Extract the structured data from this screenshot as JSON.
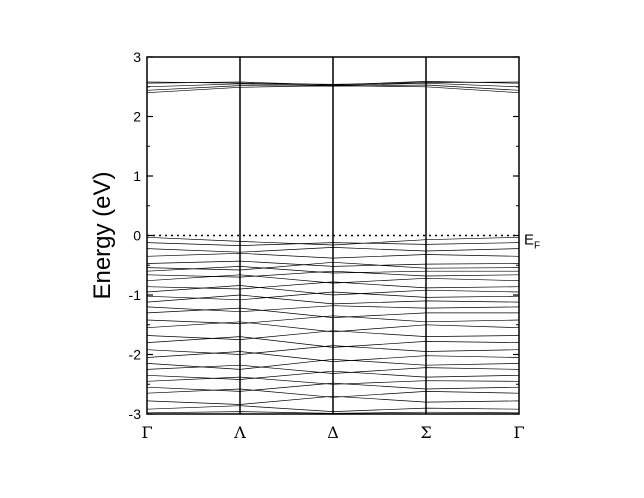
{
  "chart_data": {
    "type": "line",
    "title": "",
    "xlabel": "",
    "ylabel": "Energy (eV)",
    "ylim": [
      -3,
      3
    ],
    "yticks": [
      -3,
      -2,
      -1,
      0,
      1,
      2,
      3
    ],
    "kpoints": [
      {
        "label": "Γ",
        "x": 0
      },
      {
        "label": "Λ",
        "x": 1
      },
      {
        "label": "Δ",
        "x": 2
      },
      {
        "label": "Σ",
        "x": 3
      },
      {
        "label": "Γ",
        "x": 4
      }
    ],
    "fermi_level": {
      "energy": 0,
      "label": "E",
      "subscript": "F"
    },
    "band_color": "#000000",
    "bands": [
      {
        "values": [
          2.58,
          2.56,
          2.54,
          2.57,
          2.58
        ]
      },
      {
        "values": [
          2.56,
          2.58,
          2.53,
          2.59,
          2.56
        ]
      },
      {
        "values": [
          2.5,
          2.55,
          2.52,
          2.56,
          2.5
        ]
      },
      {
        "values": [
          2.44,
          2.52,
          2.51,
          2.53,
          2.44
        ]
      },
      {
        "values": [
          2.4,
          2.49,
          2.52,
          2.5,
          2.4
        ]
      },
      {
        "values": [
          -0.03,
          -0.1,
          -0.16,
          -0.07,
          -0.03
        ]
      },
      {
        "values": [
          -0.12,
          -0.17,
          -0.12,
          -0.15,
          -0.12
        ]
      },
      {
        "values": [
          -0.22,
          -0.28,
          -0.2,
          -0.26,
          -0.22
        ]
      },
      {
        "values": [
          -0.35,
          -0.3,
          -0.38,
          -0.32,
          -0.35
        ]
      },
      {
        "values": [
          -0.47,
          -0.43,
          -0.52,
          -0.48,
          -0.47
        ]
      },
      {
        "values": [
          -0.54,
          -0.58,
          -0.45,
          -0.55,
          -0.54
        ]
      },
      {
        "values": [
          -0.6,
          -0.52,
          -0.63,
          -0.6,
          -0.6
        ]
      },
      {
        "values": [
          -0.66,
          -0.7,
          -0.6,
          -0.68,
          -0.66
        ]
      },
      {
        "values": [
          -0.76,
          -0.66,
          -0.8,
          -0.72,
          -0.76
        ]
      },
      {
        "values": [
          -0.86,
          -0.9,
          -0.78,
          -0.88,
          -0.86
        ]
      },
      {
        "values": [
          -0.95,
          -0.84,
          -1.0,
          -0.92,
          -0.95
        ]
      },
      {
        "values": [
          -1.02,
          -1.08,
          -0.95,
          -1.04,
          -1.02
        ]
      },
      {
        "values": [
          -1.12,
          -1.0,
          -1.15,
          -1.1,
          -1.12
        ]
      },
      {
        "values": [
          -1.2,
          -1.28,
          -1.18,
          -1.22,
          -1.2
        ]
      },
      {
        "values": [
          -1.3,
          -1.22,
          -1.38,
          -1.3,
          -1.3
        ]
      },
      {
        "values": [
          -1.42,
          -1.48,
          -1.35,
          -1.45,
          -1.42
        ]
      },
      {
        "values": [
          -1.55,
          -1.45,
          -1.62,
          -1.5,
          -1.55
        ]
      },
      {
        "values": [
          -1.68,
          -1.75,
          -1.6,
          -1.7,
          -1.68
        ]
      },
      {
        "values": [
          -1.8,
          -1.7,
          -1.88,
          -1.78,
          -1.8
        ]
      },
      {
        "values": [
          -1.92,
          -2.0,
          -1.85,
          -1.95,
          -1.92
        ]
      },
      {
        "values": [
          -2.05,
          -1.95,
          -2.12,
          -2.02,
          -2.05
        ]
      },
      {
        "values": [
          -2.15,
          -2.25,
          -2.08,
          -2.18,
          -2.15
        ]
      },
      {
        "values": [
          -2.25,
          -2.18,
          -2.32,
          -2.22,
          -2.25
        ]
      },
      {
        "values": [
          -2.35,
          -2.42,
          -2.28,
          -2.38,
          -2.35
        ]
      },
      {
        "values": [
          -2.45,
          -2.38,
          -2.5,
          -2.44,
          -2.45
        ]
      },
      {
        "values": [
          -2.55,
          -2.62,
          -2.48,
          -2.58,
          -2.55
        ]
      },
      {
        "values": [
          -2.65,
          -2.58,
          -2.72,
          -2.62,
          -2.65
        ]
      },
      {
        "values": [
          -2.78,
          -2.84,
          -2.7,
          -2.8,
          -2.78
        ]
      },
      {
        "values": [
          -2.92,
          -2.86,
          -2.96,
          -2.9,
          -2.92
        ]
      },
      {
        "values": [
          -2.98,
          -2.96,
          -2.99,
          -2.97,
          -2.98
        ]
      }
    ]
  }
}
